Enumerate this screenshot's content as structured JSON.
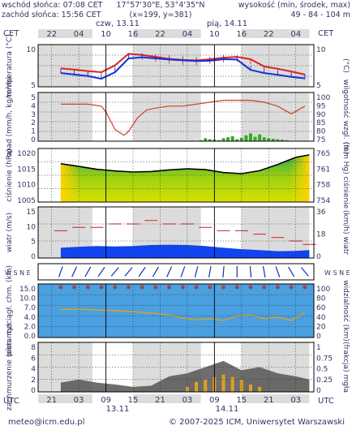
{
  "header": {
    "sunrise": "wschód słońca: 07:08 CET",
    "sunset": "zachód słońca: 15:56 CET",
    "coords": "17°57'30\"E, 53°4'35\"N",
    "grid": "(x=199,  y=381)",
    "elev_label": "wysokość (min, środek, max)",
    "elev_values": "49 - 84 - 104 m"
  },
  "top_axis": {
    "tz": "CET",
    "tz_right": "CET",
    "day1": "czw, 13.11",
    "day2": "pią, 14.11",
    "hours": [
      "22",
      "04",
      "10",
      "16",
      "22",
      "04",
      "10",
      "16",
      "22",
      "04"
    ]
  },
  "bottom_axis": {
    "tz": "UTC",
    "tz_right": "UTC",
    "hours": [
      "21",
      "03",
      "09",
      "15",
      "21",
      "03",
      "09",
      "15",
      "21",
      "03"
    ],
    "day1": "13.11",
    "day2": "14.11"
  },
  "footer": {
    "email": "meteo@icm.edu.pl",
    "copyright": "© 2007-2025 ICM, Uniwersytet Warszawski"
  },
  "colors": {
    "temp_max": "#dd2222",
    "temp_min": "#1133dd",
    "humidity": "#cc4422",
    "precip": "#33aa22",
    "wind": "#1144ee",
    "night_shade": "#dcdcdc",
    "cloud_dark": "#555555",
    "fog": "#e0a020"
  },
  "chart_data": [
    {
      "type": "line",
      "panel": "temperature",
      "ylabel": "temperatura (°C)",
      "ylabel_right": "(°C)",
      "ylim": [
        2,
        13
      ],
      "ticks_left": [
        "10",
        "5"
      ],
      "ticks_right": [
        "10",
        "5"
      ],
      "x_hours": [
        0,
        3,
        6,
        9,
        12,
        15,
        18,
        21,
        24,
        27,
        30,
        33,
        36,
        39,
        42,
        45,
        48,
        51,
        54
      ],
      "series": [
        {
          "values": [
            6.8,
            6.5,
            6.1,
            5.8,
            7.6,
            10.6,
            10.3,
            9.8,
            9.3,
            9.0,
            8.9,
            9.2,
            9.6,
            9.8,
            9.2,
            7.3,
            6.7,
            6.0,
            5.2
          ]
        },
        {
          "values": [
            5.6,
            5.2,
            4.8,
            4.1,
            5.8,
            9.4,
            9.7,
            9.4,
            9.1,
            8.9,
            8.7,
            8.8,
            9.2,
            9.1,
            6.4,
            5.6,
            5.1,
            4.6,
            4.2
          ]
        }
      ]
    },
    {
      "type": "bar",
      "panel": "precipitation-humidity",
      "ylabel": "opad (mm/h, kg/m²/h)",
      "ylabel_right": "wilgotność wzgl. (%)",
      "ylim": [
        0,
        5
      ],
      "ylim_right": [
        75,
        100
      ],
      "ticks_left": [
        "5",
        "4",
        "3",
        "2",
        "1",
        "0"
      ],
      "ticks_right": [
        "100",
        "95",
        "90",
        "85",
        "80",
        "75"
      ],
      "humidity_x_hours": [
        0,
        3,
        6,
        9,
        10,
        12,
        14,
        15,
        17,
        19,
        21,
        24,
        27,
        30,
        33,
        36,
        39,
        42,
        45,
        48,
        51,
        54
      ],
      "humidity": [
        94,
        94,
        94,
        93,
        90,
        81,
        78,
        80,
        87,
        91,
        92,
        93,
        93,
        94,
        95,
        96,
        96,
        96,
        95,
        93,
        89,
        93
      ],
      "precip_x_hours": [
        29,
        31,
        32,
        33,
        34,
        35,
        36,
        37,
        38,
        39,
        40,
        41,
        42,
        43,
        44,
        45,
        46,
        47,
        48,
        49,
        50
      ],
      "precip": [
        0.05,
        0.1,
        0.3,
        0.2,
        0.15,
        0.1,
        0.3,
        0.4,
        0.5,
        0.2,
        0.35,
        0.6,
        0.8,
        0.45,
        0.7,
        0.4,
        0.3,
        0.25,
        0.2,
        0.15,
        0.1
      ]
    },
    {
      "type": "area",
      "panel": "pressure",
      "ylabel": "ciśnienie (hPa)",
      "ylabel_right": "(mm Hg) ciśnienie",
      "ylim": [
        1000,
        1020
      ],
      "ticks_left": [
        "1020",
        "1015",
        "1010",
        "1005"
      ],
      "ticks_right": [
        "765",
        "761",
        "758",
        "754"
      ],
      "x_hours": [
        0,
        4,
        8,
        12,
        16,
        20,
        24,
        28,
        32,
        36,
        40,
        44,
        48,
        52,
        55
      ],
      "values": [
        1014.3,
        1013.3,
        1012.2,
        1011.6,
        1011.2,
        1011.4,
        1012.0,
        1012.4,
        1012.1,
        1011.0,
        1010.6,
        1011.7,
        1014.0,
        1016.7,
        1017.6
      ]
    },
    {
      "type": "area",
      "panel": "wind",
      "ylabel": "wiatr (m/s)",
      "ylabel_right": "(km/h) wiatr",
      "ylim": [
        0,
        15
      ],
      "ticks_left": [
        "15",
        "10",
        "5",
        "0"
      ],
      "ticks_right": [
        "36",
        "18",
        "0"
      ],
      "x_hours": [
        0,
        4,
        8,
        12,
        16,
        20,
        24,
        28,
        32,
        36,
        40,
        44,
        48,
        52,
        55
      ],
      "mean": [
        3.0,
        3.3,
        3.5,
        3.4,
        3.5,
        3.8,
        3.9,
        3.8,
        3.5,
        3.0,
        2.6,
        2.3,
        2.0,
        2.1,
        2.3
      ],
      "gusts": [
        8,
        9,
        9,
        10,
        10,
        11,
        10,
        10,
        9,
        8,
        8,
        7,
        6,
        5,
        4
      ]
    },
    {
      "type": "scatter",
      "panel": "wind-direction",
      "label": "W S N E",
      "x_hours": [
        0,
        3,
        6,
        9,
        12,
        15,
        18,
        21,
        24,
        27,
        30,
        33,
        36,
        39,
        42,
        45,
        48,
        51,
        54
      ],
      "direction_deg": [
        200,
        205,
        210,
        215,
        220,
        220,
        215,
        210,
        205,
        200,
        195,
        190,
        185,
        180,
        175,
        170,
        160,
        150,
        140
      ]
    },
    {
      "type": "line",
      "panel": "visibility-cloudbase",
      "ylabel": "pion. rozciągł. chm. (km)",
      "ylabel_right": "widzialność (km)",
      "ylim": [
        0,
        15
      ],
      "ylim_right": [
        0,
        100
      ],
      "ticks_left": [
        "15.0",
        "10.0",
        "7.0",
        "4.0",
        "2.0",
        "0.0"
      ],
      "ticks_right": [
        "100",
        "80",
        "60",
        "40",
        "20",
        "0"
      ],
      "x_hours": [
        0,
        3,
        6,
        9,
        12,
        15,
        18,
        21,
        24,
        27,
        30,
        33,
        36,
        39,
        42,
        45,
        48,
        51,
        54
      ],
      "visibility": [
        52,
        53,
        52,
        51,
        50,
        49,
        47,
        45,
        42,
        36,
        33,
        35,
        32,
        40,
        42,
        35,
        38,
        32,
        46
      ]
    },
    {
      "type": "area",
      "panel": "clouds-fog",
      "ylabel": "zachmurzenie (oktanty)",
      "ylabel_right": "(frakcja) mgła",
      "ylim": [
        0,
        8
      ],
      "ylim_right": [
        0,
        1
      ],
      "ticks_left": [
        "8",
        "6",
        "4",
        "2",
        "0"
      ],
      "ticks_right": [
        "1",
        "0.75",
        "0.5",
        "0.25",
        "0"
      ],
      "x_hours": [
        0,
        4,
        8,
        12,
        16,
        20,
        24,
        28,
        32,
        36,
        40,
        44,
        48,
        52,
        55
      ],
      "cloud_low": [
        1.5,
        2.0,
        1.5,
        1.2,
        0.8,
        1.0,
        2.5,
        3.0,
        4.0,
        5.0,
        3.5,
        4.0,
        3.0,
        2.5,
        2.0
      ],
      "fog_x_hours": [
        28,
        30,
        32,
        34,
        36,
        38,
        40,
        42,
        44
      ],
      "fog": [
        0.1,
        0.2,
        0.25,
        0.3,
        0.35,
        0.3,
        0.25,
        0.15,
        0.1
      ]
    }
  ]
}
